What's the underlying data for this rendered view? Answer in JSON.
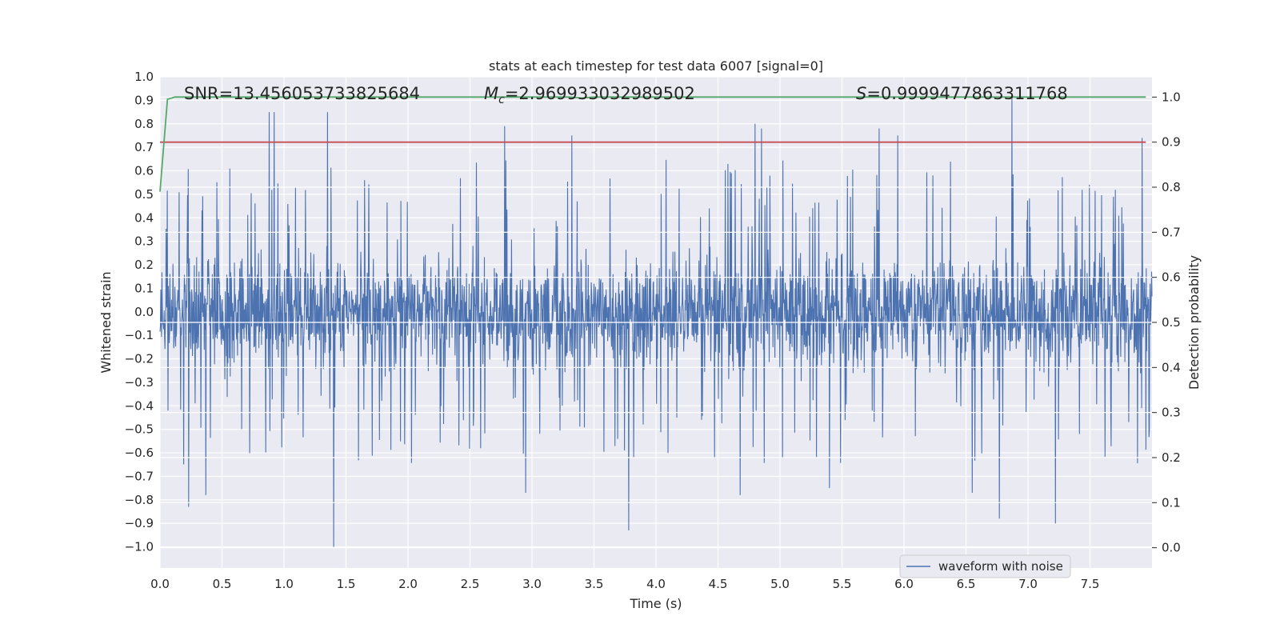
{
  "chart_data": {
    "type": "line",
    "title": "stats at each timestep for test data 6007 [signal=0]",
    "xlabel": "Time (s)",
    "ylabel": "Whitened strain",
    "y2label": "Detection probability",
    "xlim": [
      0.0,
      8.0
    ],
    "ylim": [
      -1.09,
      1.0
    ],
    "y2lim": [
      -0.045,
      1.045
    ],
    "x_ticks": [
      "0.0",
      "0.5",
      "1.0",
      "1.5",
      "2.0",
      "2.5",
      "3.0",
      "3.5",
      "4.0",
      "4.5",
      "5.0",
      "5.5",
      "6.0",
      "6.5",
      "7.0",
      "7.5"
    ],
    "y_ticks": [
      "1.0",
      "0.9",
      "0.8",
      "0.7",
      "0.6",
      "0.5",
      "0.4",
      "0.3",
      "0.2",
      "0.1",
      "0.0",
      "−0.1",
      "−0.2",
      "−0.3",
      "−0.4",
      "−0.5",
      "−0.6",
      "−0.7",
      "−0.8",
      "−0.9",
      "−1.0"
    ],
    "y2_ticks": [
      "1.0",
      "0.9",
      "0.8",
      "0.7",
      "0.6",
      "0.5",
      "0.4",
      "0.3",
      "0.2",
      "0.1",
      "0.0"
    ],
    "annotations": {
      "snr": "SNR=13.456053733825684",
      "mc_symbol": "M",
      "mc_sub": "c",
      "mc_value": "=2.969933032989502",
      "s_symbol": "S",
      "s_value": "=0.9999477863311768"
    },
    "legend": {
      "label": "waveform with noise",
      "position": "lower-right"
    },
    "series": [
      {
        "name": "waveform with noise",
        "axis": "left",
        "color": "#4c72b0",
        "duration": 8.0,
        "core_amplitude": 0.33,
        "upper_spikes": [
          [
            0.88,
            0.85
          ],
          [
            0.92,
            0.85
          ],
          [
            1.35,
            0.85
          ],
          [
            2.78,
            0.79
          ],
          [
            3.32,
            0.75
          ],
          [
            4.8,
            0.8
          ],
          [
            4.85,
            0.78
          ],
          [
            5.8,
            0.78
          ],
          [
            5.95,
            0.75
          ],
          [
            6.87,
            0.92
          ],
          [
            7.92,
            0.74
          ]
        ],
        "lower_spikes": [
          [
            0.23,
            -0.83
          ],
          [
            0.37,
            -0.78
          ],
          [
            1.4,
            -1.0
          ],
          [
            2.95,
            -0.77
          ],
          [
            3.78,
            -0.93
          ],
          [
            4.68,
            -0.78
          ],
          [
            5.4,
            -0.75
          ],
          [
            6.55,
            -0.77
          ],
          [
            6.77,
            -0.88
          ],
          [
            7.22,
            -0.9
          ]
        ]
      },
      {
        "name": "detection probability",
        "axis": "right",
        "color": "#55a868",
        "x": [
          0.0,
          0.06,
          0.12,
          3.3,
          3.4,
          3.5,
          7.95
        ],
        "y": [
          0.79,
          0.995,
          1.0,
          1.0,
          0.998,
          1.0,
          1.0
        ]
      },
      {
        "name": "threshold",
        "axis": "right",
        "color": "#c44e52",
        "x": [
          0.0,
          7.95
        ],
        "y": [
          0.9,
          0.9
        ]
      }
    ]
  }
}
